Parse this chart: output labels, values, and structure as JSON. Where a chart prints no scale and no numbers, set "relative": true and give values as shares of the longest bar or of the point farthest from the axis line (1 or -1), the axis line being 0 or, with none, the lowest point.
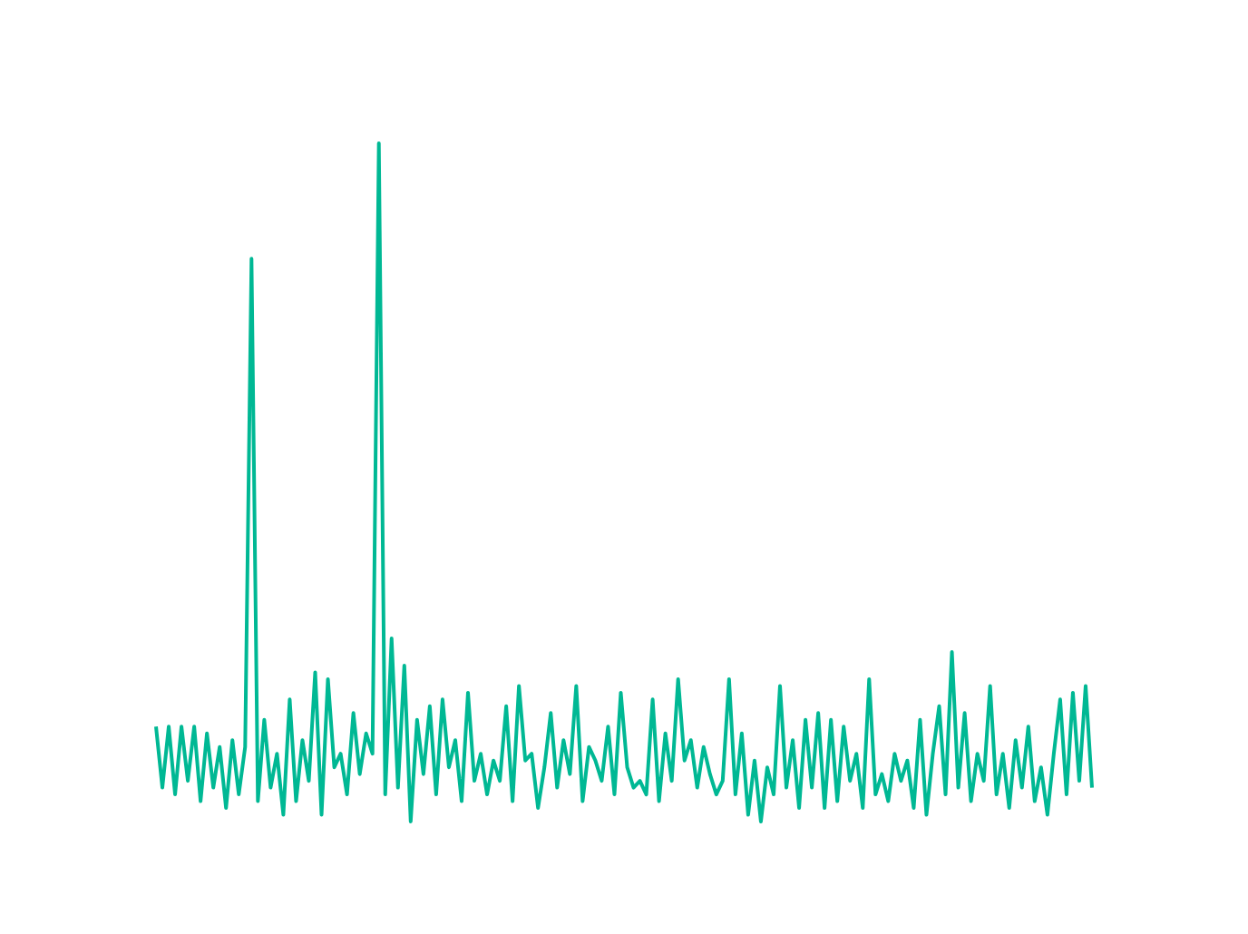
{
  "chart_data": {
    "type": "line",
    "relative": true,
    "color": "#00b894",
    "marker": "none",
    "line_style": "solid",
    "categories": [
      null,
      null,
      null,
      null,
      null,
      null,
      null,
      null,
      null,
      null,
      null,
      null,
      null,
      null,
      null,
      null,
      null,
      null,
      null,
      null,
      null,
      null,
      null,
      null,
      null,
      null,
      null,
      null,
      null,
      null,
      null,
      null,
      null,
      null,
      null,
      null,
      null,
      null,
      null,
      null,
      null,
      null,
      null,
      null,
      null,
      null,
      null,
      null,
      null,
      null,
      null,
      null,
      null,
      null,
      null,
      null,
      null,
      null,
      null,
      null,
      null,
      null,
      null,
      null,
      null,
      null,
      null,
      null,
      null,
      null,
      null,
      null,
      null,
      null,
      null,
      null,
      null,
      null,
      null,
      null,
      null,
      null,
      null,
      null,
      null,
      null,
      null,
      null,
      null,
      null,
      null,
      null,
      null,
      null,
      null,
      null,
      null,
      null,
      null,
      null,
      null,
      null,
      null,
      null,
      null,
      null,
      null,
      null,
      null,
      null,
      null,
      null,
      null,
      null,
      null,
      null,
      null,
      null,
      null,
      null,
      null,
      null,
      null,
      null,
      null,
      null,
      null,
      null,
      null,
      null,
      null,
      null,
      null,
      null,
      null,
      null,
      null,
      null,
      null,
      null,
      null,
      null,
      null,
      null,
      null,
      null,
      null,
      null
    ],
    "values": [
      0.14,
      0.05,
      0.14,
      0.04,
      0.14,
      0.06,
      0.14,
      0.03,
      0.13,
      0.05,
      0.11,
      0.02,
      0.12,
      0.04,
      0.11,
      0.83,
      0.03,
      0.15,
      0.05,
      0.1,
      0.01,
      0.18,
      0.03,
      0.12,
      0.06,
      0.22,
      0.01,
      0.21,
      0.08,
      0.1,
      0.04,
      0.16,
      0.07,
      0.13,
      0.1,
      1.0,
      0.04,
      0.27,
      0.05,
      0.23,
      0.0,
      0.15,
      0.07,
      0.17,
      0.04,
      0.18,
      0.08,
      0.12,
      0.03,
      0.19,
      0.06,
      0.1,
      0.04,
      0.09,
      0.06,
      0.17,
      0.03,
      0.2,
      0.09,
      0.1,
      0.02,
      0.08,
      0.16,
      0.05,
      0.12,
      0.07,
      0.2,
      0.03,
      0.11,
      0.09,
      0.06,
      0.14,
      0.04,
      0.19,
      0.08,
      0.05,
      0.06,
      0.04,
      0.18,
      0.03,
      0.13,
      0.06,
      0.21,
      0.09,
      0.12,
      0.05,
      0.11,
      0.07,
      0.04,
      0.06,
      0.21,
      0.04,
      0.13,
      0.01,
      0.09,
      0.0,
      0.08,
      0.04,
      0.2,
      0.05,
      0.12,
      0.02,
      0.15,
      0.05,
      0.16,
      0.02,
      0.15,
      0.03,
      0.14,
      0.06,
      0.1,
      0.02,
      0.21,
      0.04,
      0.07,
      0.03,
      0.1,
      0.06,
      0.09,
      0.02,
      0.15,
      0.01,
      0.1,
      0.17,
      0.04,
      0.25,
      0.05,
      0.16,
      0.03,
      0.1,
      0.06,
      0.2,
      0.04,
      0.1,
      0.02,
      0.12,
      0.05,
      0.14,
      0.03,
      0.08,
      0.01,
      0.1,
      0.18,
      0.04,
      0.19,
      0.06,
      0.2,
      0.05
    ]
  }
}
